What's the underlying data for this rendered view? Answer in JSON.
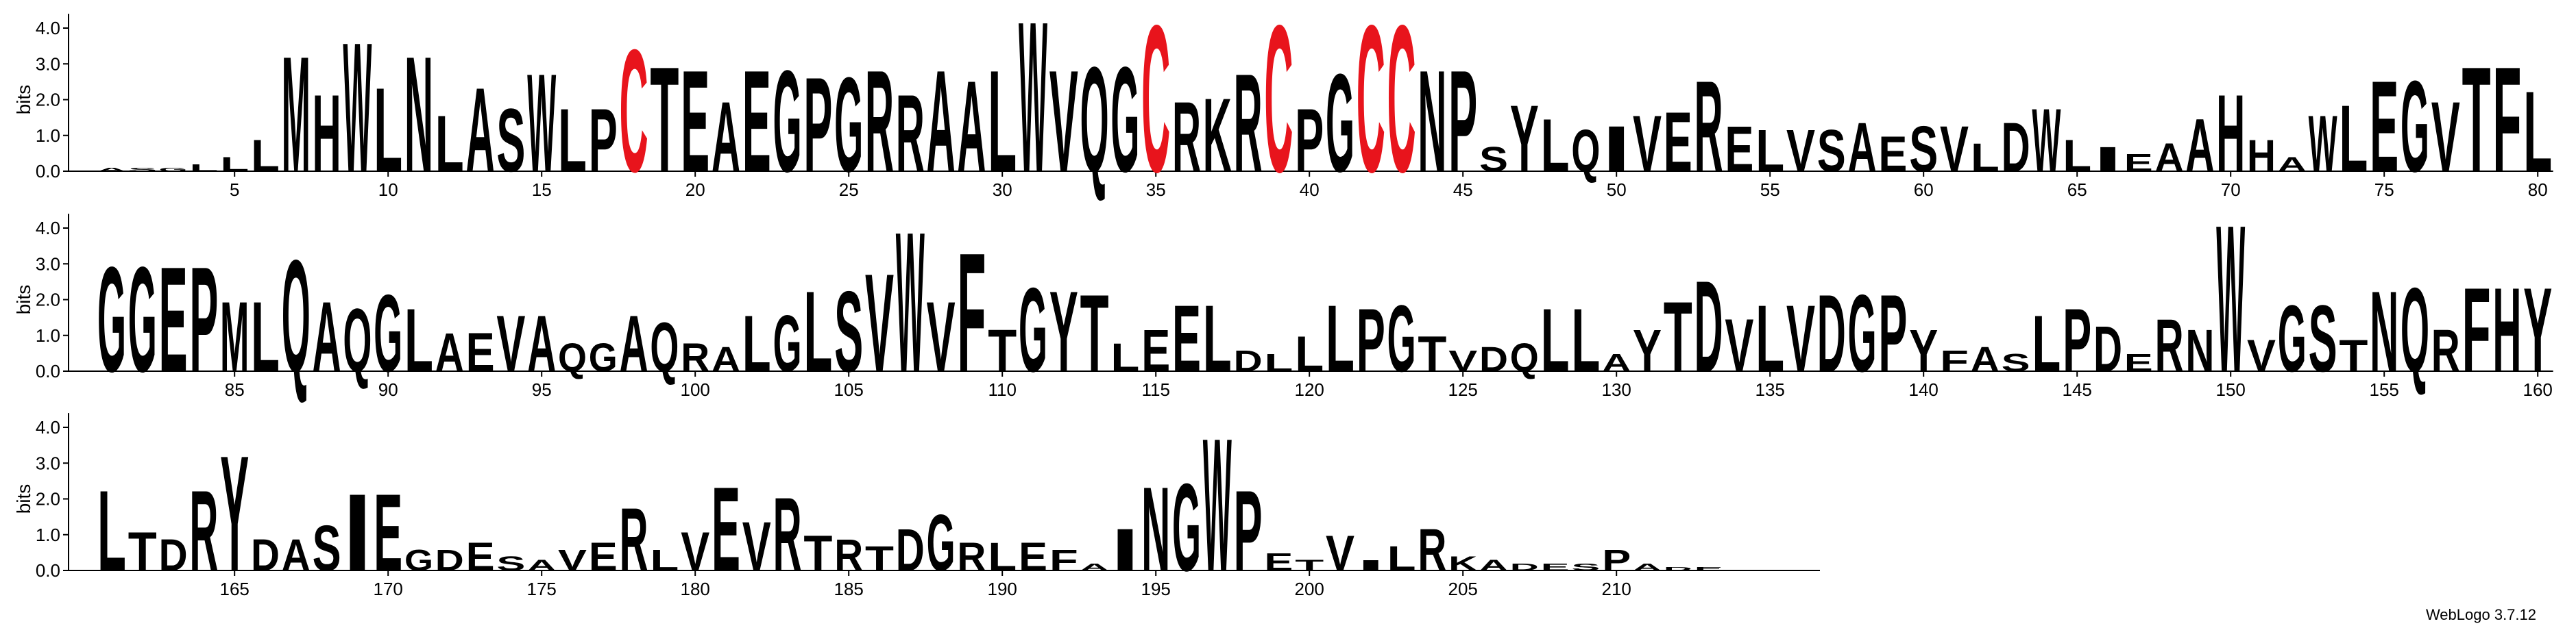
{
  "chart_data": {
    "type": "logo",
    "ylabel": "bits",
    "credit": "WebLogo 3.7.12",
    "row_length": 80,
    "ylim": [
      0,
      4.4
    ],
    "yticks": [
      {
        "value": 0,
        "label": "0.0"
      },
      {
        "value": 1,
        "label": "1.0"
      },
      {
        "value": 2,
        "label": "2.0"
      },
      {
        "value": 3,
        "label": "3.0"
      },
      {
        "value": 4,
        "label": "4.0"
      }
    ],
    "xticks": [
      5,
      10,
      15,
      20,
      25,
      30,
      35,
      40,
      45,
      50,
      55,
      60,
      65,
      70,
      75,
      80,
      85,
      90,
      95,
      100,
      105,
      110,
      115,
      120,
      125,
      130,
      135,
      140,
      145,
      150,
      155,
      160,
      165,
      170,
      175,
      180,
      185,
      190,
      195,
      200,
      205,
      210
    ],
    "color": "#000000",
    "highlight_colors": {
      "C": "#e8141c"
    },
    "letters": [
      "A",
      "S",
      "G",
      "L",
      "L",
      "L",
      "M",
      "H",
      "W",
      "L",
      "N",
      "L",
      "A",
      "S",
      "W",
      "L",
      "P",
      "C",
      "T",
      "E",
      "A",
      "E",
      "G",
      "P",
      "G",
      "R",
      "R",
      "A",
      "A",
      "L",
      "W",
      "V",
      "Q",
      "G",
      "C",
      "R",
      "K",
      "R",
      "C",
      "P",
      "G",
      "C",
      "C",
      "N",
      "P",
      "S",
      "Y",
      "L",
      "Q",
      "I",
      "V",
      "E",
      "R",
      "E",
      "L",
      "V",
      "S",
      "A",
      "E",
      "S",
      "V",
      "L",
      "D",
      "W",
      "L",
      "I",
      "E",
      "A",
      "A",
      "H",
      "H",
      "A",
      "W",
      "L",
      "E",
      "G",
      "V",
      "T",
      "F",
      "L",
      "G",
      "G",
      "E",
      "P",
      "M",
      "L",
      "Q",
      "A",
      "Q",
      "G",
      "L",
      "A",
      "E",
      "V",
      "A",
      "Q",
      "G",
      "A",
      "Q",
      "R",
      "A",
      "L",
      "G",
      "L",
      "S",
      "V",
      "W",
      "V",
      "F",
      "T",
      "G",
      "Y",
      "T",
      "L",
      "E",
      "E",
      "L",
      "D",
      "L",
      "L",
      "L",
      "P",
      "G",
      "T",
      "V",
      "D",
      "Q",
      "L",
      "L",
      "A",
      "Y",
      "T",
      "D",
      "V",
      "L",
      "V",
      "D",
      "G",
      "P",
      "Y",
      "F",
      "A",
      "S",
      "L",
      "P",
      "D",
      "E",
      "R",
      "N",
      "W",
      "V",
      "G",
      "S",
      "T",
      "N",
      "Q",
      "R",
      "F",
      "H",
      "Y",
      "L",
      "T",
      "D",
      "R",
      "Y",
      "D",
      "A",
      "S",
      "I",
      "E",
      "G",
      "D",
      "E",
      "S",
      "A",
      "V",
      "E",
      "R",
      "L",
      "V",
      "E",
      "V",
      "R",
      "T",
      "R",
      "T",
      "D",
      "G",
      "R",
      "L",
      "E",
      "F",
      "A",
      "I",
      "N",
      "G",
      "W",
      "P",
      "E",
      "T",
      "V",
      "I",
      "L",
      "R",
      "K",
      "A",
      "D",
      "E",
      "S",
      "P",
      "A",
      "D",
      "E"
    ],
    "bits": [
      0.1,
      0.1,
      0.1,
      0.2,
      0.4,
      0.9,
      3.3,
      2.2,
      3.7,
      2.4,
      3.3,
      1.6,
      2.4,
      1.8,
      2.8,
      1.8,
      1.8,
      3.5,
      3.0,
      2.9,
      2.0,
      2.9,
      2.9,
      2.7,
      2.7,
      2.9,
      2.2,
      2.9,
      2.6,
      2.9,
      4.3,
      2.9,
      3.0,
      3.0,
      4.2,
      2.0,
      2.1,
      2.8,
      4.2,
      1.8,
      2.8,
      4.2,
      4.2,
      2.9,
      2.9,
      0.7,
      1.9,
      1.5,
      1.2,
      1.3,
      1.6,
      1.7,
      2.6,
      1.3,
      1.2,
      1.2,
      1.2,
      1.4,
      1.0,
      1.3,
      1.3,
      0.8,
      1.4,
      1.8,
      0.9,
      0.7,
      0.5,
      0.8,
      1.5,
      2.2,
      0.9,
      0.4,
      1.6,
      1.9,
      2.6,
      2.6,
      2.0,
      3.0,
      3.0,
      2.3,
      3.0,
      3.0,
      3.0,
      3.0,
      2.0,
      2.0,
      3.2,
      2.0,
      1.8,
      2.2,
      1.8,
      1.1,
      1.1,
      1.6,
      1.6,
      0.8,
      0.8,
      1.6,
      1.4,
      0.8,
      0.7,
      1.6,
      1.6,
      2.3,
      2.3,
      2.8,
      4.0,
      2.0,
      3.4,
      1.2,
      2.4,
      2.3,
      2.2,
      0.8,
      1.2,
      1.9,
      1.9,
      0.6,
      0.5,
      1.0,
      1.9,
      1.8,
      1.9,
      1.0,
      0.6,
      0.7,
      0.8,
      1.8,
      1.8,
      0.5,
      1.2,
      2.0,
      2.6,
      1.5,
      1.9,
      1.9,
      2.2,
      2.2,
      2.2,
      1.2,
      0.6,
      0.7,
      0.5,
      1.6,
      1.8,
      1.3,
      0.5,
      1.5,
      1.2,
      4.2,
      0.9,
      1.9,
      1.9,
      0.9,
      2.3,
      2.4,
      1.2,
      2.4,
      2.4,
      2.4,
      2.3,
      1.1,
      0.9,
      2.3,
      3.3,
      0.9,
      0.9,
      1.3,
      2.2,
      2.2,
      0.6,
      0.6,
      0.8,
      0.4,
      0.3,
      0.6,
      0.8,
      1.8,
      0.6,
      1.1,
      2.4,
      1.4,
      2.1,
      1.0,
      0.9,
      0.7,
      1.2,
      1.6,
      0.8,
      0.8,
      0.8,
      0.6,
      0.2,
      1.2,
      2.4,
      2.5,
      3.8,
      2.3,
      0.5,
      0.3,
      1.0,
      0.3,
      0.7,
      1.2,
      0.4,
      0.3,
      0.2,
      0.2,
      0.2,
      0.6,
      0.2,
      0.1,
      0.1
    ]
  }
}
